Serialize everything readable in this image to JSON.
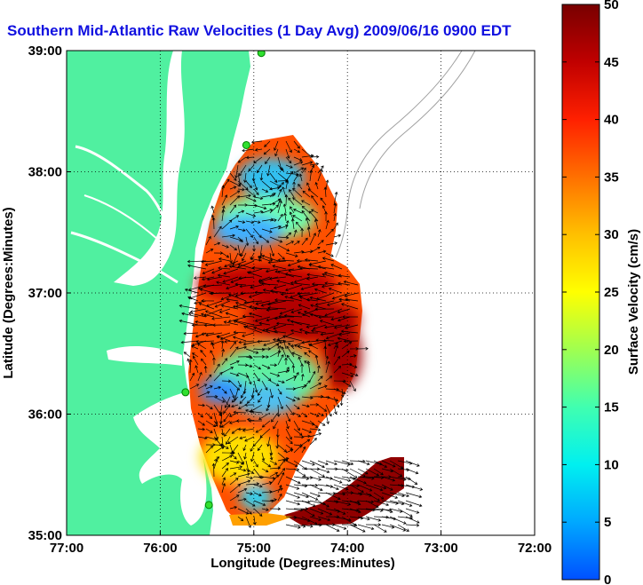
{
  "chart_data": {
    "type": "heatmap",
    "title": "Southern Mid-Atlantic Raw Velocities (1 Day Avg) 2009/06/16 0900 EDT",
    "xlabel": "Longitude (Degrees:Minutes)",
    "ylabel": "Latitude (Degrees:Minutes)",
    "x_ticks": [
      "77:00",
      "76:00",
      "75:00",
      "74:00",
      "73:00",
      "72:00"
    ],
    "y_ticks": [
      "39:00",
      "38:00",
      "37:00",
      "36:00",
      "35:00"
    ],
    "xlim": [
      -77,
      -72
    ],
    "ylim": [
      35,
      39
    ],
    "grid": true,
    "colorbar": {
      "label": "Surface Velocity (cm/s)",
      "range": [
        0,
        50
      ],
      "ticks": [
        "0",
        "5",
        "10",
        "15",
        "20",
        "25",
        "30",
        "35",
        "40",
        "45",
        "50"
      ],
      "colormap": [
        "#0050ff",
        "#00a8ff",
        "#00f0f0",
        "#40ffb0",
        "#a0ff50",
        "#ffff00",
        "#ffc000",
        "#ff7000",
        "#ff2000",
        "#c00000",
        "#780000"
      ]
    },
    "land_color": "#50f0a0",
    "hf_radar_sites": [
      {
        "lon": -74.92,
        "lat": 38.98
      },
      {
        "lon": -75.08,
        "lat": 38.22
      },
      {
        "lon": -75.73,
        "lat": 36.18
      },
      {
        "lon": -75.48,
        "lat": 35.25
      }
    ]
  }
}
